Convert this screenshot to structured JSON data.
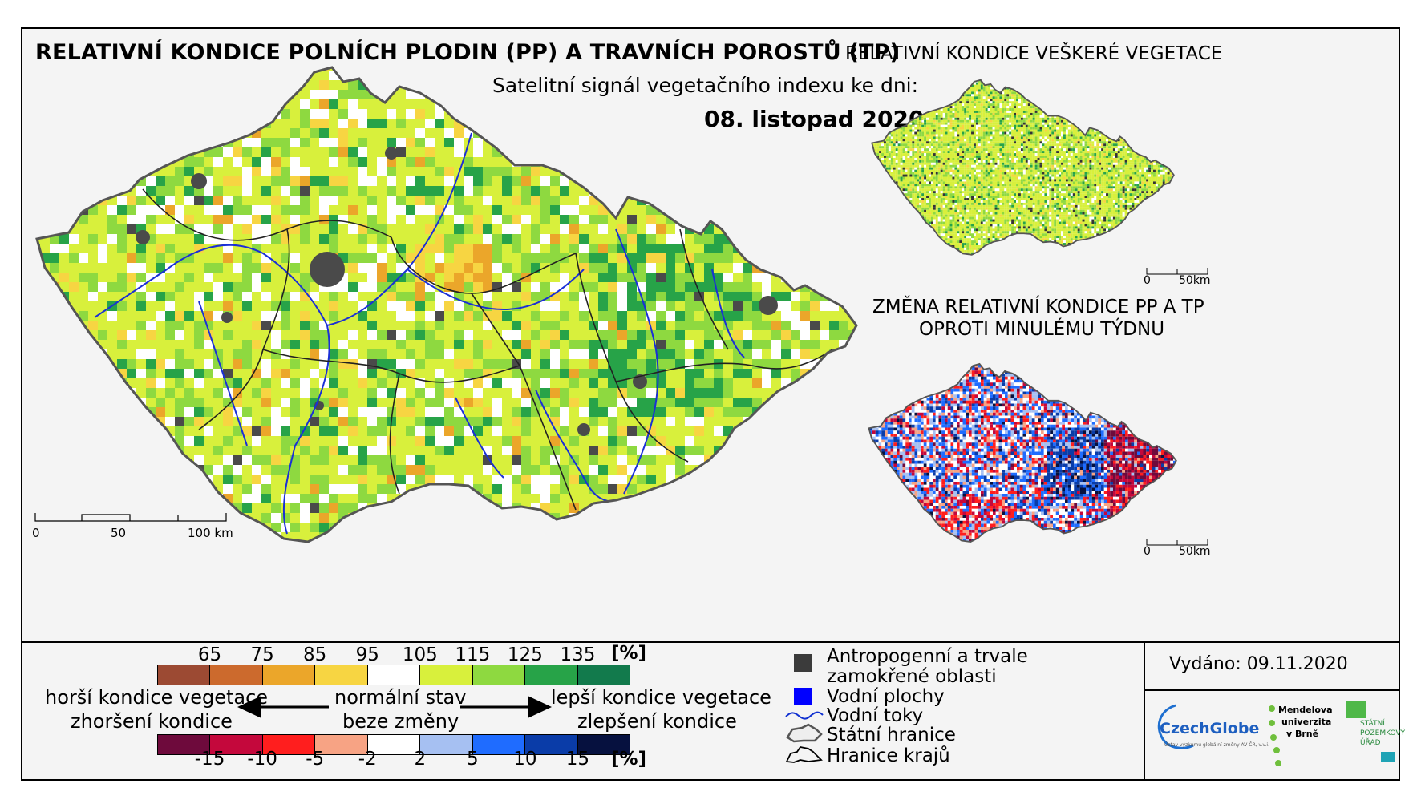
{
  "main": {
    "title": "RELATIVNÍ KONDICE POLNÍCH PLODIN (PP) A TRAVNÍCH POROSTŮ (TP)",
    "subtitle": "Satelitní signál vegetačního indexu ke dni:",
    "date": "08. listopad 2020",
    "scalebar": {
      "labels": [
        "0",
        "50",
        "100 km"
      ]
    }
  },
  "inset_top": {
    "title": "RELATIVNÍ KONDICE VEŠKERÉ VEGETACE",
    "scalebar": {
      "labels": [
        "0",
        "50km"
      ]
    }
  },
  "inset_bottom": {
    "title_line1": "ZMĚNA RELATIVNÍ KONDICE PP A TP",
    "title_line2": "OPROTI MINULÉMU TÝDNU",
    "scalebar": {
      "labels": [
        "0",
        "50km"
      ]
    }
  },
  "legend": {
    "condition_ticks": [
      "65",
      "75",
      "85",
      "95",
      "105",
      "115",
      "125",
      "135"
    ],
    "condition_colors": [
      "#9c4a33",
      "#cc6a2d",
      "#eba62a",
      "#f7d542",
      "#ffffff",
      "#d8f03c",
      "#8ed940",
      "#27a348",
      "#127a4c"
    ],
    "condition_unit": "[%]",
    "change_ticks": [
      "-15",
      "-10",
      "-5",
      "-2",
      "2",
      "5",
      "10",
      "15"
    ],
    "change_colors": [
      "#6e0a3c",
      "#c4083c",
      "#ff1e1e",
      "#f7a384",
      "#ffffff",
      "#a6c0f2",
      "#1f6cff",
      "#0a3ca8",
      "#06113f"
    ],
    "change_unit": "[%]",
    "left_line1": "horší kondice vegetace",
    "left_line2": "zhoršení kondice",
    "center_line1": "normální stav",
    "center_line2": "beze změny",
    "right_line1": "lepší kondice vegetace",
    "right_line2": "zlepšení kondice",
    "items": [
      {
        "label": "Antropogenní a trvale zamokřené oblasti",
        "line1": "Antropogenní a trvale",
        "line2": "zamokřené oblasti",
        "color": "#3b3b3b"
      },
      {
        "label": "Vodní plochy",
        "color": "#0000ff"
      },
      {
        "label": "Vodní toky",
        "color": "#1030d0"
      },
      {
        "label": "Státní hranice",
        "color": "#555555"
      },
      {
        "label": "Hranice krajů",
        "color": "#000000"
      }
    ]
  },
  "issued": "Vydáno: 09.11.2020",
  "logos": {
    "czechglobe": "CzechGlobe",
    "czechglobe_sub": "Ústav výzkumu globální změny AV ČR, v.v.i.",
    "mendel_1": "Mendelova",
    "mendel_2": "univerzita",
    "mendel_3": "v Brně",
    "spu_1": "STÁTNÍ",
    "spu_2": "POZEMKOVÝ",
    "spu_3": "ÚŘAD"
  }
}
